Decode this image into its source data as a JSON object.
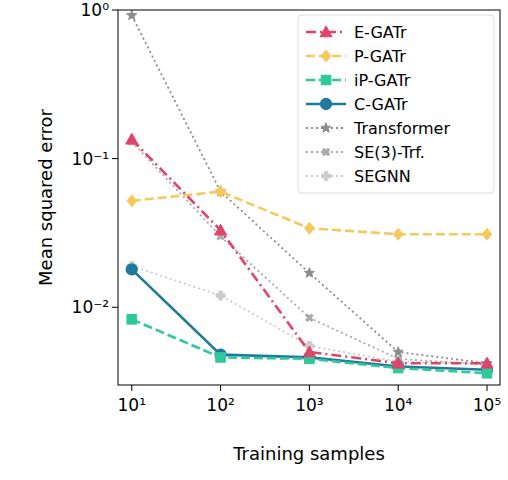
{
  "chart_data": {
    "type": "line",
    "log": true,
    "legend": "upper right",
    "x_label": "Training samples",
    "y_label": "Mean squared error",
    "x": [
      10,
      100,
      1000,
      10000,
      100000
    ],
    "xlim": [
      7,
      140000
    ],
    "xticks": [
      {
        "value": 10,
        "label": "10¹"
      },
      {
        "value": 100,
        "label": "10²"
      },
      {
        "value": 1000,
        "label": "10³"
      },
      {
        "value": 10000,
        "label": "10⁴"
      },
      {
        "value": 100000,
        "label": "10⁵"
      }
    ],
    "ylim": [
      0.003,
      1
    ],
    "yticks": [
      {
        "value": 0.01,
        "label": "10⁻²"
      },
      {
        "value": 0.1,
        "label": "10⁻¹"
      },
      {
        "value": 1,
        "label": "10⁰"
      }
    ],
    "series": [
      {
        "name": "E-GATr",
        "color": "#e0446a",
        "marker": "triangle",
        "line_style": "dashdot",
        "values": [
          0.135,
          0.033,
          0.005,
          0.0042,
          0.0042
        ]
      },
      {
        "name": "P-GATr",
        "color": "#f7c95c",
        "marker": "diamond",
        "line_style": "dashed",
        "values": [
          0.052,
          0.06,
          0.034,
          0.031,
          0.031
        ]
      },
      {
        "name": "iP-GATr",
        "color": "#2ec99b",
        "marker": "square",
        "line_style": "dashed",
        "values": [
          0.0083,
          0.0046,
          0.0045,
          0.0039,
          0.0036
        ]
      },
      {
        "name": "C-GATr",
        "color": "#1f7a9e",
        "marker": "circle",
        "line_style": "solid",
        "values": [
          0.018,
          0.0048,
          0.0046,
          0.004,
          0.0038
        ]
      },
      {
        "name": "Transformer",
        "color": "#8c8c8c",
        "marker": "star",
        "line_style": "dotted",
        "values": [
          0.92,
          0.06,
          0.017,
          0.005,
          0.0042
        ]
      },
      {
        "name": "SE(3)-Trf.",
        "color": "#aaaaaa",
        "marker": "x",
        "line_style": "dotted",
        "values": [
          0.13,
          0.03,
          0.0085,
          0.0045,
          0.0041
        ]
      },
      {
        "name": "SEGNN",
        "color": "#cccccc",
        "marker": "plus",
        "line_style": "dotted",
        "values": [
          0.019,
          0.012,
          0.0055,
          0.0043,
          0.0042
        ]
      }
    ]
  }
}
